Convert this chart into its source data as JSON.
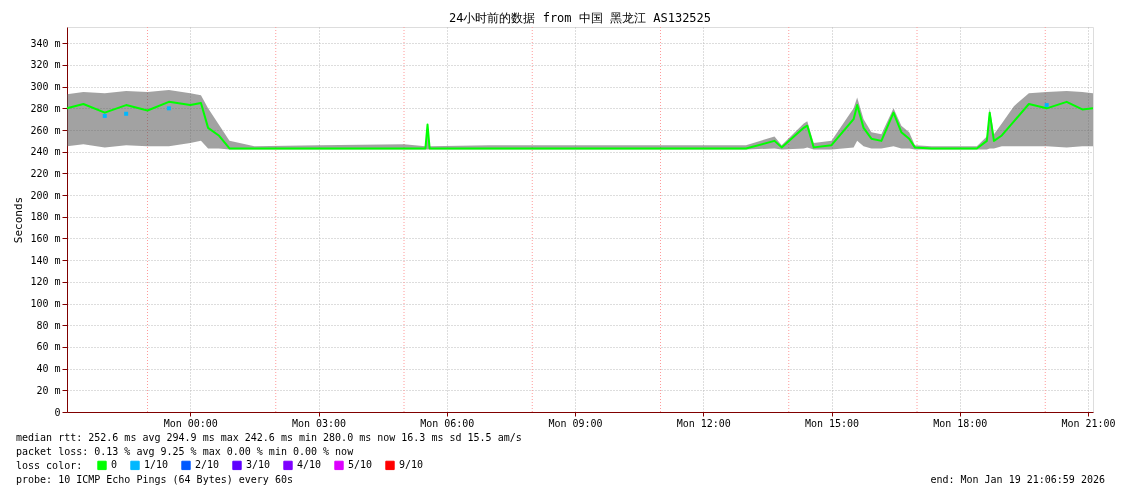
{
  "chart_data": {
    "type": "line",
    "title": "24小时前的数据 from  中国 黑龙江 AS132525",
    "ylabel": "Seconds",
    "x": [
      "2026-01-18T21:07",
      "2026-01-18T21:30",
      "2026-01-18T22:00",
      "2026-01-18T22:30",
      "2026-01-18T23:00",
      "2026-01-18T23:30",
      "2026-01-19T00:00",
      "2026-01-19T00:15",
      "2026-01-19T00:25",
      "2026-01-19T00:40",
      "2026-01-19T00:55",
      "2026-01-19T01:30",
      "2026-01-19T03:00",
      "2026-01-19T05:00",
      "2026-01-19T05:30",
      "2026-01-19T05:33",
      "2026-01-19T05:36",
      "2026-01-19T07:00",
      "2026-01-19T09:00",
      "2026-01-19T11:00",
      "2026-01-19T13:00",
      "2026-01-19T13:40",
      "2026-01-19T13:50",
      "2026-01-19T14:21",
      "2026-01-19T14:26",
      "2026-01-19T14:35",
      "2026-01-19T15:00",
      "2026-01-19T15:31",
      "2026-01-19T15:36",
      "2026-01-19T15:45",
      "2026-01-19T15:56",
      "2026-01-19T16:10",
      "2026-01-19T16:27",
      "2026-01-19T16:38",
      "2026-01-19T16:49",
      "2026-01-19T16:57",
      "2026-01-19T17:20",
      "2026-01-19T18:24",
      "2026-01-19T18:38",
      "2026-01-19T18:42",
      "2026-01-19T18:48",
      "2026-01-19T18:59",
      "2026-01-19T19:16",
      "2026-01-19T19:37",
      "2026-01-19T20:02",
      "2026-01-19T20:30",
      "2026-01-19T20:52",
      "2026-01-19T21:07"
    ],
    "series": [
      {
        "name": "0",
        "type": "line",
        "color": "#00ff00",
        "values": [
          280,
          284,
          276,
          283,
          278,
          286,
          283,
          285,
          262,
          255,
          243,
          243,
          243,
          243,
          243,
          265,
          243,
          243,
          243,
          243,
          243,
          250,
          244,
          262,
          264,
          244,
          246,
          270,
          283,
          262,
          252,
          250,
          276,
          258,
          252,
          244,
          243,
          243,
          250,
          276,
          250,
          255,
          268,
          284,
          280,
          286,
          279,
          280
        ],
        "lower": [
          245,
          247,
          244,
          246,
          245,
          245,
          248,
          250,
          243,
          243,
          242,
          242,
          242,
          242,
          242,
          242,
          242,
          242,
          242,
          242,
          242,
          243,
          242,
          243,
          244,
          242,
          242,
          244,
          250,
          245,
          243,
          243,
          245,
          243,
          243,
          242,
          242,
          242,
          242,
          243,
          243,
          245,
          245,
          245,
          245,
          244,
          245,
          245
        ],
        "upper": [
          293,
          295,
          294,
          296,
          295,
          297,
          294,
          292,
          280,
          265,
          250,
          245,
          246,
          247,
          245,
          265,
          245,
          246,
          246,
          246,
          246,
          254,
          246,
          266,
          268,
          248,
          250,
          280,
          290,
          270,
          258,
          256,
          280,
          264,
          258,
          246,
          245,
          245,
          254,
          280,
          256,
          266,
          282,
          294,
          295,
          296,
          295,
          294
        ]
      },
      {
        "name": "1/10",
        "type": "scatter",
        "color": "#00b8ff",
        "values": [
          null,
          null,
          273,
          275,
          null,
          280,
          null,
          null,
          null,
          null,
          null,
          null,
          null,
          null,
          null,
          null,
          null,
          null,
          null,
          null,
          null,
          null,
          null,
          null,
          null,
          null,
          null,
          null,
          null,
          null,
          null,
          null,
          null,
          null,
          null,
          null,
          null,
          null,
          null,
          null,
          null,
          null,
          null,
          null,
          283,
          null,
          null,
          null
        ]
      },
      {
        "name": "2/10",
        "type": "scatter",
        "color": "#0059ff",
        "values": [
          null,
          null,
          null,
          null,
          null,
          null,
          null,
          null,
          null,
          null,
          null,
          null,
          null,
          null,
          null,
          null,
          null,
          null,
          null,
          null,
          null,
          null,
          null,
          null,
          null,
          null,
          null,
          null,
          null,
          null,
          null,
          null,
          null,
          null,
          null,
          null,
          null,
          null,
          null,
          null,
          null,
          null,
          null,
          null,
          null,
          null,
          null,
          null
        ]
      },
      {
        "name": "3/10",
        "type": "scatter",
        "color": "#5e00ff",
        "values": [
          null,
          null,
          null,
          null,
          null,
          null,
          null,
          null,
          null,
          null,
          null,
          null,
          null,
          null,
          null,
          null,
          null,
          null,
          null,
          null,
          null,
          null,
          null,
          null,
          null,
          null,
          null,
          null,
          null,
          null,
          null,
          null,
          null,
          null,
          null,
          null,
          null,
          null,
          null,
          null,
          null,
          null,
          null,
          null,
          null,
          null,
          null,
          null
        ]
      },
      {
        "name": "4/10",
        "type": "scatter",
        "color": "#7e00ff",
        "values": [
          null,
          null,
          null,
          null,
          null,
          null,
          null,
          null,
          null,
          null,
          null,
          null,
          null,
          null,
          null,
          null,
          null,
          null,
          null,
          null,
          null,
          null,
          null,
          null,
          null,
          null,
          null,
          null,
          null,
          null,
          null,
          null,
          null,
          null,
          null,
          null,
          null,
          null,
          null,
          null,
          null,
          null,
          null,
          null,
          null,
          null,
          null,
          null
        ]
      },
      {
        "name": "5/10",
        "type": "scatter",
        "color": "#dd00ff",
        "values": [
          null,
          null,
          null,
          null,
          null,
          null,
          null,
          null,
          null,
          null,
          null,
          null,
          null,
          null,
          null,
          null,
          null,
          null,
          null,
          null,
          null,
          null,
          null,
          null,
          null,
          null,
          null,
          null,
          null,
          null,
          null,
          null,
          null,
          null,
          null,
          null,
          null,
          null,
          null,
          null,
          null,
          null,
          null,
          null,
          null,
          null,
          null,
          null
        ]
      },
      {
        "name": "9/10",
        "type": "scatter",
        "color": "#ff0000",
        "values": [
          null,
          null,
          null,
          null,
          null,
          null,
          null,
          null,
          null,
          null,
          null,
          null,
          null,
          null,
          null,
          null,
          null,
          null,
          null,
          null,
          null,
          null,
          null,
          null,
          null,
          null,
          null,
          null,
          null,
          null,
          null,
          null,
          null,
          null,
          null,
          null,
          null,
          null,
          null,
          null,
          null,
          null,
          null,
          null,
          null,
          null,
          null,
          null
        ]
      }
    ],
    "legend_title": "loss color:",
    "legend": "bottom",
    "xlim": [
      "2026-01-18T21:07",
      "2026-01-19T21:07"
    ],
    "xticks": [
      {
        "value": "2026-01-19T00:00",
        "label": "Mon 00:00"
      },
      {
        "value": "2026-01-19T03:00",
        "label": "Mon 03:00"
      },
      {
        "value": "2026-01-19T06:00",
        "label": "Mon 06:00"
      },
      {
        "value": "2026-01-19T09:00",
        "label": "Mon 09:00"
      },
      {
        "value": "2026-01-19T12:00",
        "label": "Mon 12:00"
      },
      {
        "value": "2026-01-19T15:00",
        "label": "Mon 15:00"
      },
      {
        "value": "2026-01-19T18:00",
        "label": "Mon 18:00"
      },
      {
        "value": "2026-01-19T21:00",
        "label": "Mon 21:00"
      }
    ],
    "ylim": [
      0,
      355
    ],
    "yticks": [
      {
        "value": 0,
        "label": "0"
      },
      {
        "value": 20,
        "label": "20 m"
      },
      {
        "value": 40,
        "label": "40 m"
      },
      {
        "value": 60,
        "label": "60 m"
      },
      {
        "value": 80,
        "label": "80 m"
      },
      {
        "value": 100,
        "label": "100 m"
      },
      {
        "value": 120,
        "label": "120 m"
      },
      {
        "value": 140,
        "label": "140 m"
      },
      {
        "value": 160,
        "label": "160 m"
      },
      {
        "value": 180,
        "label": "180 m"
      },
      {
        "value": 200,
        "label": "200 m"
      },
      {
        "value": 220,
        "label": "220 m"
      },
      {
        "value": 240,
        "label": "240 m"
      },
      {
        "value": 260,
        "label": "260 m"
      },
      {
        "value": 280,
        "label": "280 m"
      },
      {
        "value": 300,
        "label": "300 m"
      },
      {
        "value": 320,
        "label": "320 m"
      },
      {
        "value": 340,
        "label": "340 m"
      }
    ],
    "grid": true,
    "ref_lines": [
      {
        "axis": "x",
        "value": "2026-01-18T23:00",
        "color": "#ff9a9a",
        "line_style": "dotted"
      },
      {
        "axis": "x",
        "value": "2026-01-19T02:00",
        "color": "#ff9a9a",
        "line_style": "dotted"
      },
      {
        "axis": "x",
        "value": "2026-01-19T05:00",
        "color": "#ff9a9a",
        "line_style": "dotted"
      },
      {
        "axis": "x",
        "value": "2026-01-19T08:00",
        "color": "#ff9a9a",
        "line_style": "dotted"
      },
      {
        "axis": "x",
        "value": "2026-01-19T11:00",
        "color": "#ff9a9a",
        "line_style": "dotted"
      },
      {
        "axis": "x",
        "value": "2026-01-19T14:00",
        "color": "#ff9a9a",
        "line_style": "dotted"
      },
      {
        "axis": "x",
        "value": "2026-01-19T17:00",
        "color": "#ff9a9a",
        "line_style": "dotted"
      },
      {
        "axis": "x",
        "value": "2026-01-19T20:00",
        "color": "#ff9a9a",
        "line_style": "dotted"
      }
    ],
    "annotations": [
      "median rtt:  252.6 ms avg  294.9 ms max  242.6 ms min  280.0 ms now  16.3 ms sd  15.5   am/s",
      "packet loss: 0.13 % avg  9.25 % max  0.00 % min  0.00 % now",
      "probe:       10 ICMP Echo Pings (64 Bytes) every 60s",
      "end: Mon Jan 19 21:06:59 2026"
    ]
  }
}
